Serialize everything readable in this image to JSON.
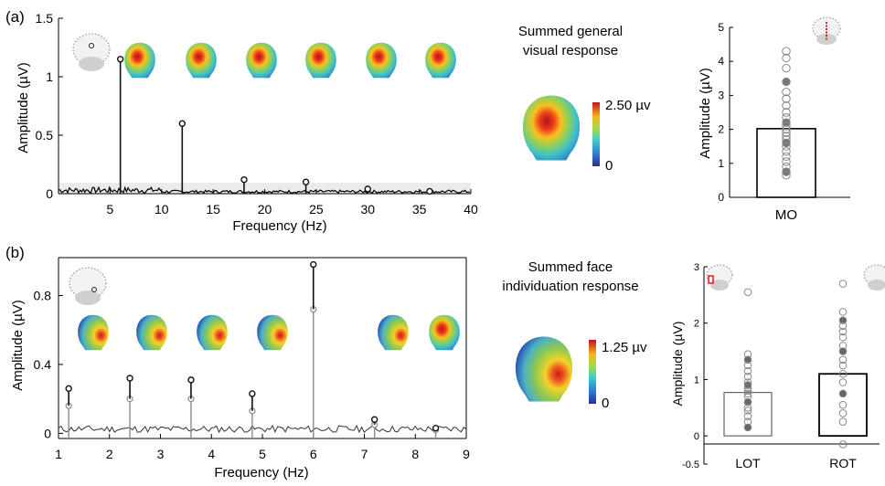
{
  "panel_a": {
    "label": "(a)",
    "map_title_1": "Summed general",
    "map_title_2": "visual response",
    "colorbar_max": "2.50 µv",
    "colorbar_min": "0"
  },
  "panel_b": {
    "label": "(b)",
    "map_title_1": "Summed face",
    "map_title_2": "individuation response",
    "colorbar_max": "1.25 µv",
    "colorbar_min": "0"
  },
  "colors": {
    "accent_red": "#d9201a",
    "stem_dark": "#111111",
    "stem_gray": "#8a8a8a",
    "bar_edge": "#000000"
  },
  "chart_data": [
    {
      "id": "a-spectrum",
      "type": "line",
      "xlabel": "Frequency (Hz)",
      "ylabel": "Amplitude (µV)",
      "xlim": [
        0,
        40
      ],
      "ylim": [
        0,
        1.5
      ],
      "xticks": [
        "5",
        "10",
        "15",
        "20",
        "25",
        "30",
        "35",
        "40"
      ],
      "yticks": [
        "0",
        "0.5",
        "1",
        "1.5"
      ],
      "series": [
        {
          "x": [
            6,
            12,
            18,
            24,
            30,
            36
          ],
          "values": [
            1.15,
            0.6,
            0.12,
            0.1,
            0.04,
            0.02
          ]
        }
      ]
    },
    {
      "id": "a-bar",
      "type": "bar",
      "categories": [
        "MO"
      ],
      "values": [
        2.02
      ],
      "ylabel": "Amplitude (µV)",
      "ylim": [
        0,
        5
      ],
      "yticks": [
        "0",
        "1",
        "2",
        "3",
        "4",
        "5"
      ],
      "points": [
        4.3,
        4.1,
        3.8,
        3.4,
        3.1,
        2.9,
        2.7,
        2.5,
        2.35,
        2.2,
        2.1,
        2.0,
        1.9,
        1.8,
        1.7,
        1.6,
        1.5,
        1.35,
        1.2,
        1.05,
        0.9,
        0.75,
        0.65
      ]
    },
    {
      "id": "b-spectrum",
      "type": "line",
      "xlabel": "Frequency (Hz)",
      "ylabel": "Amplitude (µV)",
      "xlim": [
        1,
        9
      ],
      "ylim": [
        -0.03,
        1.02
      ],
      "xticks": [
        "1",
        "2",
        "3",
        "4",
        "5",
        "6",
        "7",
        "8",
        "9"
      ],
      "yticks": [
        "0",
        "0.4",
        "0.8"
      ],
      "series": [
        {
          "x": [
            1.2,
            2.4,
            3.6,
            4.8,
            6.0,
            7.2,
            8.4
          ],
          "values": [
            0.26,
            0.32,
            0.31,
            0.23,
            0.98,
            0.08,
            0.03
          ]
        },
        {
          "x": [
            1.2,
            2.4,
            3.6,
            4.8,
            6.0,
            7.2,
            8.4
          ],
          "values": [
            0.16,
            0.2,
            0.2,
            0.13,
            0.72,
            0.05,
            0.02
          ]
        }
      ]
    },
    {
      "id": "b-bar",
      "type": "bar",
      "categories": [
        "LOT",
        "ROT"
      ],
      "values": [
        0.77,
        1.1
      ],
      "ylabel": "Amplitude (µV)",
      "ylim": [
        -0.5,
        3
      ],
      "yticks": [
        "-0.5",
        "0",
        "1",
        "2",
        "3"
      ],
      "points_LOT": [
        2.55,
        1.45,
        1.35,
        1.25,
        1.15,
        1.05,
        0.95,
        0.9,
        0.85,
        0.8,
        0.75,
        0.7,
        0.6,
        0.5,
        0.45,
        0.35,
        0.25,
        0.15
      ],
      "points_ROT": [
        2.7,
        2.2,
        2.05,
        1.95,
        1.85,
        1.75,
        1.6,
        1.5,
        1.35,
        1.25,
        1.1,
        0.95,
        0.75,
        0.55,
        0.4,
        0.25,
        -0.15
      ]
    }
  ]
}
